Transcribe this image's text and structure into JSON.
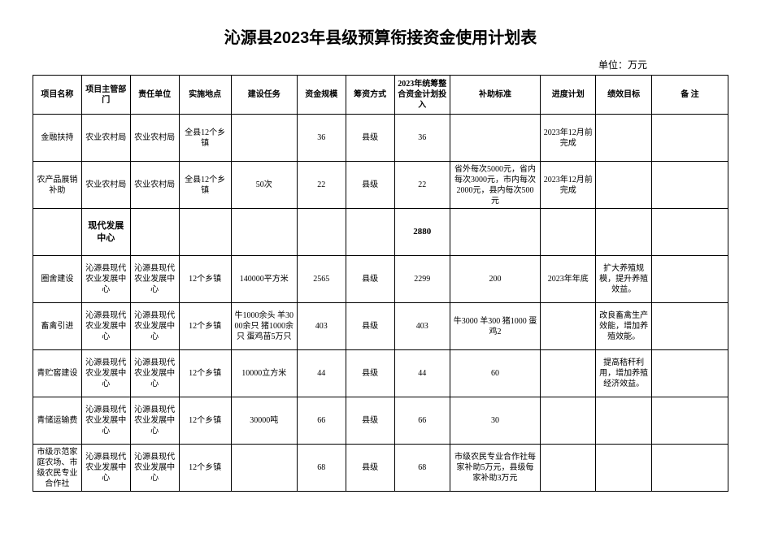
{
  "title": "沁源县2023年县级预算衔接资金使用计划表",
  "unit_label": "单位：万元",
  "headers": {
    "project_name": "项目名称",
    "dept": "项目主管部门",
    "responsible": "责任单位",
    "location": "实施地点",
    "task": "建设任务",
    "scale": "资金规模",
    "method": "筹资方式",
    "plan_invest": "2023年统筹整合资金计划投入",
    "subsidy": "补助标准",
    "schedule": "进度计划",
    "performance": "绩效目标",
    "note": "备  注"
  },
  "section": {
    "dept_label": "现代发展中心",
    "plan_value": "2880"
  },
  "rows": [
    {
      "name": "金融扶持",
      "dept": "农业农村局",
      "resp": "农业农村局",
      "loc": "全县12个乡镇",
      "task": "",
      "scale": "36",
      "method": "县级",
      "plan": "36",
      "subsidy": "",
      "schedule": "2023年12月前完成",
      "perf": "",
      "note": ""
    },
    {
      "name": "农产品展销补助",
      "dept": "农业农村局",
      "resp": "农业农村局",
      "loc": "全县12个乡镇",
      "task": "50次",
      "scale": "22",
      "method": "县级",
      "plan": "22",
      "subsidy": "省外每次5000元，省内每次3000元，市内每次2000元，县内每次500元",
      "schedule": "2023年12月前完成",
      "perf": "",
      "note": ""
    },
    {
      "name": "圈舍建设",
      "dept": "沁源县现代农业发展中心",
      "resp": "沁源县现代农业发展中心",
      "loc": "12个乡镇",
      "task": "140000平方米",
      "scale": "2565",
      "method": "县级",
      "plan": "2299",
      "subsidy": "200",
      "schedule": "2023年年底",
      "perf": "扩大养殖规模，提升养殖效益。",
      "note": ""
    },
    {
      "name": "畜禽引进",
      "dept": "沁源县现代农业发展中心",
      "resp": "沁源县现代农业发展中心",
      "loc": "12个乡镇",
      "task": "牛1000余头 羊3000余只 猪1000余只 蛋鸡苗5万只",
      "scale": "403",
      "method": "县级",
      "plan": "403",
      "subsidy": "牛3000 羊300 猪1000 蛋鸡2",
      "schedule": "",
      "perf": "改良畜禽生产效能，增加养殖效能。",
      "note": ""
    },
    {
      "name": "青贮窖建设",
      "dept": "沁源县现代农业发展中心",
      "resp": "沁源县现代农业发展中心",
      "loc": "12个乡镇",
      "task": "10000立方米",
      "scale": "44",
      "method": "县级",
      "plan": "44",
      "subsidy": "60",
      "schedule": "",
      "perf": "提高秸秆利用，增加养殖经济效益。",
      "note": ""
    },
    {
      "name": "青储运输费",
      "dept": "沁源县现代农业发展中心",
      "resp": "沁源县现代农业发展中心",
      "loc": "12个乡镇",
      "task": "30000吨",
      "scale": "66",
      "method": "县级",
      "plan": "66",
      "subsidy": "30",
      "schedule": "",
      "perf": "",
      "note": ""
    },
    {
      "name": "市级示范家庭农场、市级农民专业合作社",
      "dept": "沁源县现代农业发展中心",
      "resp": "沁源县现代农业发展中心",
      "loc": "12个乡镇",
      "task": "",
      "scale": "68",
      "method": "县级",
      "plan": "68",
      "subsidy": "市级农民专业合作社每家补助5万元，县级每家补助3万元",
      "schedule": "",
      "perf": "",
      "note": ""
    }
  ]
}
